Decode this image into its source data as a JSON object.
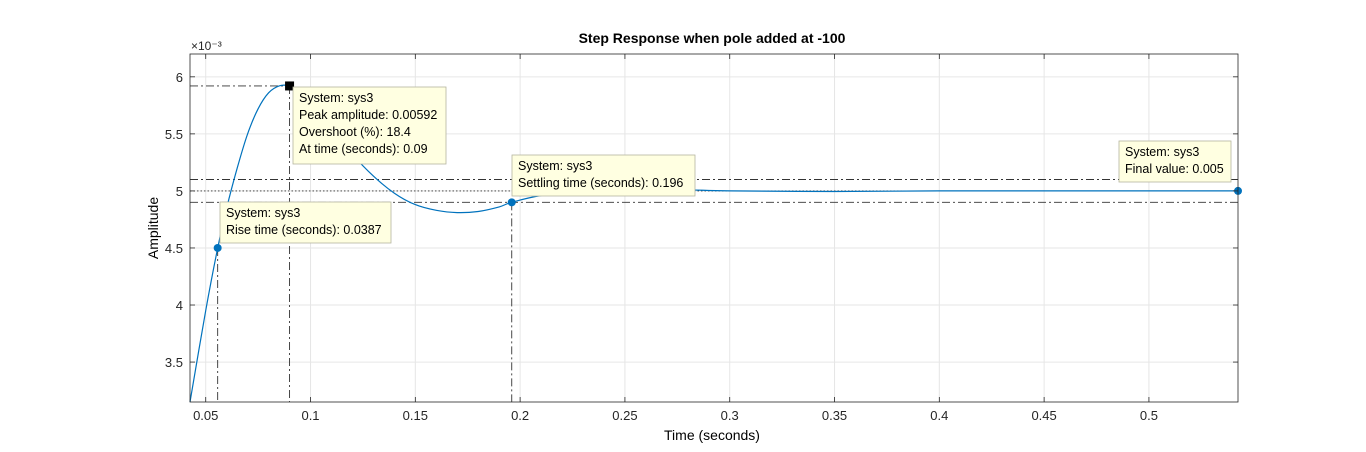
{
  "chart_data": {
    "type": "line",
    "title": "Step Response when pole added at -100",
    "xlabel": "Time (seconds)",
    "ylabel": "Amplitude",
    "y_exponent": "×10⁻³",
    "y_scale": 0.001,
    "xlim": [
      0.0425,
      0.5425
    ],
    "ylim": [
      3.15,
      6.2
    ],
    "grid": true,
    "xticks": [
      0.05,
      0.1,
      0.15,
      0.2,
      0.25,
      0.3,
      0.35,
      0.4,
      0.45,
      0.5
    ],
    "xtick_labels": [
      "0.05",
      "0.1",
      "0.15",
      "0.2",
      "0.25",
      "0.3",
      "0.35",
      "0.4",
      "0.45",
      "0.5"
    ],
    "yticks": [
      3.5,
      4,
      4.5,
      5,
      5.5,
      6
    ],
    "ytick_labels": [
      "3.5",
      "4",
      "4.5",
      "5",
      "5.5",
      "6"
    ],
    "series": [
      {
        "color": "#0072BD",
        "x": [
          0.0425,
          0.05,
          0.0557,
          0.06,
          0.065,
          0.07,
          0.075,
          0.08,
          0.085,
          0.09,
          0.095,
          0.1,
          0.11,
          0.12,
          0.13,
          0.14,
          0.15,
          0.16,
          0.17,
          0.18,
          0.19,
          0.196,
          0.21,
          0.23,
          0.25,
          0.28,
          0.3,
          0.35,
          0.4,
          0.45,
          0.5,
          0.5425
        ],
        "y": [
          3.15,
          3.95,
          4.5,
          4.85,
          5.2,
          5.5,
          5.72,
          5.86,
          5.92,
          5.92,
          5.87,
          5.78,
          5.55,
          5.32,
          5.13,
          4.98,
          4.88,
          4.83,
          4.81,
          4.82,
          4.86,
          4.9,
          4.96,
          5.0,
          5.02,
          5.01,
          5.0,
          4.995,
          5.0,
          5.0,
          5.0,
          5.0
        ]
      }
    ],
    "reference_lines": {
      "final_value": 5.0,
      "settling_band_upper": 5.1,
      "settling_band_lower": 4.9
    },
    "markers": {
      "rise": {
        "x": 0.0557,
        "y": 4.5
      },
      "peak": {
        "x": 0.09,
        "y": 5.92
      },
      "settling": {
        "x": 0.196,
        "y": 4.9
      },
      "final": {
        "x": 0.5425,
        "y": 5.0
      }
    },
    "datatips": [
      {
        "id": "peak",
        "lines": [
          "System: sys3",
          "Peak amplitude: 0.00592",
          "Overshoot (%): 18.4",
          "At time (seconds): 0.09"
        ]
      },
      {
        "id": "settling",
        "lines": [
          "System: sys3",
          "Settling time (seconds): 0.196"
        ]
      },
      {
        "id": "final",
        "lines": [
          "System: sys3",
          "Final value: 0.005"
        ]
      },
      {
        "id": "rise",
        "lines": [
          "System: sys3",
          "Rise time (seconds): 0.0387"
        ]
      }
    ]
  }
}
